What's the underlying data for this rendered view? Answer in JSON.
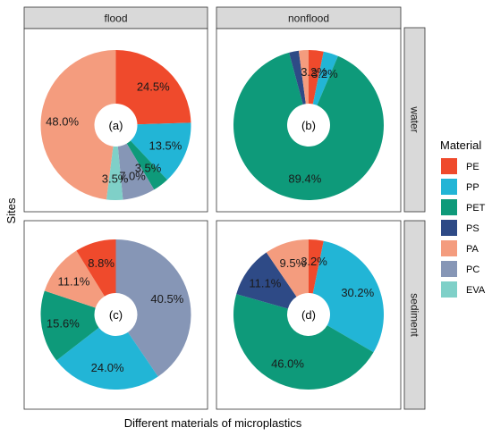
{
  "chart_data": {
    "type": "pie",
    "variant": "donut",
    "xlabel": "Different materials of microplastics",
    "ylabel": "Sites",
    "column_facets": [
      "flood",
      "nonflood"
    ],
    "row_facets": [
      "water",
      "sediment"
    ],
    "legend": {
      "title": "Material",
      "placement": "right",
      "entries": [
        {
          "name": "PE",
          "color": "#ef4a2c"
        },
        {
          "name": "PP",
          "color": "#22b5d6"
        },
        {
          "name": "PET",
          "color": "#0e9a7a"
        },
        {
          "name": "PS",
          "color": "#2e4a86"
        },
        {
          "name": "PA",
          "color": "#f49c7e"
        },
        {
          "name": "PC",
          "color": "#8696b6"
        },
        {
          "name": "EVA",
          "color": "#7fd0c8"
        }
      ]
    },
    "panels": [
      {
        "column": "flood",
        "row": "water",
        "center_label": "(a)",
        "slices": [
          {
            "material": "PE",
            "value": 24.5,
            "label": "24.5%"
          },
          {
            "material": "PP",
            "value": 13.5,
            "label": "13.5%"
          },
          {
            "material": "PET",
            "value": 3.5,
            "label": "3.5%"
          },
          {
            "material": "PC",
            "value": 7.0,
            "label": "7.0%"
          },
          {
            "material": "EVA",
            "value": 3.5,
            "label": "3.5%"
          },
          {
            "material": "PA",
            "value": 48.0,
            "label": "48.0%"
          }
        ]
      },
      {
        "column": "nonflood",
        "row": "water",
        "center_label": "(b)",
        "slices": [
          {
            "material": "PE",
            "value": 3.2,
            "label": "3.2%"
          },
          {
            "material": "PP",
            "value": 3.2,
            "label": "3.2%"
          },
          {
            "material": "PET",
            "value": 89.4,
            "label": "89.4%"
          },
          {
            "material": "PS",
            "value": 2.1,
            "label": ""
          },
          {
            "material": "PA",
            "value": 2.1,
            "label": ""
          }
        ]
      },
      {
        "column": "flood",
        "row": "sediment",
        "center_label": "(c)",
        "slices": [
          {
            "material": "PC",
            "value": 40.5,
            "label": "40.5%"
          },
          {
            "material": "PP",
            "value": 24.0,
            "label": "24.0%"
          },
          {
            "material": "PET",
            "value": 15.6,
            "label": "15.6%"
          },
          {
            "material": "PA",
            "value": 11.1,
            "label": "11.1%"
          },
          {
            "material": "PE",
            "value": 8.8,
            "label": "8.8%"
          }
        ]
      },
      {
        "column": "nonflood",
        "row": "sediment",
        "center_label": "(d)",
        "slices": [
          {
            "material": "PE",
            "value": 3.2,
            "label": "3.2%"
          },
          {
            "material": "PP",
            "value": 30.2,
            "label": "30.2%"
          },
          {
            "material": "PET",
            "value": 46.0,
            "label": "46.0%"
          },
          {
            "material": "PS",
            "value": 11.1,
            "label": "11.1%"
          },
          {
            "material": "PA",
            "value": 9.5,
            "label": "9.5%"
          }
        ]
      }
    ]
  }
}
